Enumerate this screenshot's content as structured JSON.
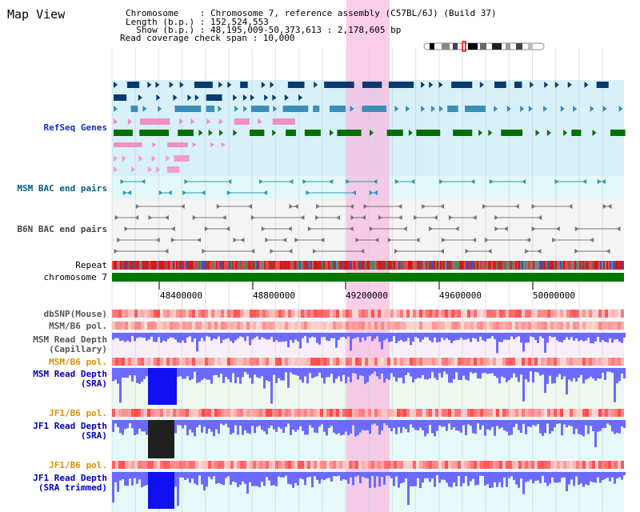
{
  "header": {
    "title": "Map View",
    "info_lines": [
      "Chromosome    : Chromosome 7, reference assembly (C57BL/6J) (Build 37)",
      "Length (b.p.) : 152,524,553",
      "  Show (b.p.) : 48,195,009-50,373,613 : 2,178,605 bp",
      "Read coverage check span : 10,000"
    ]
  },
  "tracks": {
    "refseq": "RefSeq Genes",
    "msm_bac": "MSM BAC end pairs",
    "b6n_bac": "B6N BAC end pairs",
    "repeat": "Repeat",
    "chromosome": "chromosome 7",
    "dbsnp": "dbSNP(Mouse)",
    "msm_b6_pol_1": "MSM/B6 pol.",
    "msm_depth_cap_1": "MSM Read Depth",
    "msm_depth_cap_2": "(Capillary)",
    "msm_b6_pol_2": "MSM/B6 pol.",
    "msm_depth_sra_1": "MSM Read Depth",
    "msm_depth_sra_2": "(SRA)",
    "jf1_b6_pol_1": "JF1/B6 pol.",
    "jf1_depth_sra_1": "JF1 Read Depth",
    "jf1_depth_sra_2": "(SRA)",
    "jf1_b6_pol_2": "JF1/B6 pol.",
    "jf1_depth_trim_1": "JF1 Read Depth",
    "jf1_depth_trim_2": "(SRA trimmed)"
  },
  "axis": {
    "ticks": [
      "48400000",
      "48800000",
      "49200000",
      "49600000",
      "50000000"
    ]
  },
  "colors": {
    "refseq_bg": "#d8f0f8",
    "msm_bg": "#e2f8f8",
    "b6n_bg": "#f4f4f4",
    "highlight": "#f8b8e0",
    "gene_dark": "#0a3a70",
    "gene_mid": "#3a8eb8",
    "gene_green": "#007000",
    "msm_marker": "#2b9ab0",
    "b6n_marker": "#777777",
    "chromosome_bar": "#007800",
    "msm_label": "#006080",
    "pol_label": "#e09000",
    "depth_label": "#0000c0",
    "depth_fill": "#6a6aff",
    "depth_peak": "#1010f0"
  }
}
